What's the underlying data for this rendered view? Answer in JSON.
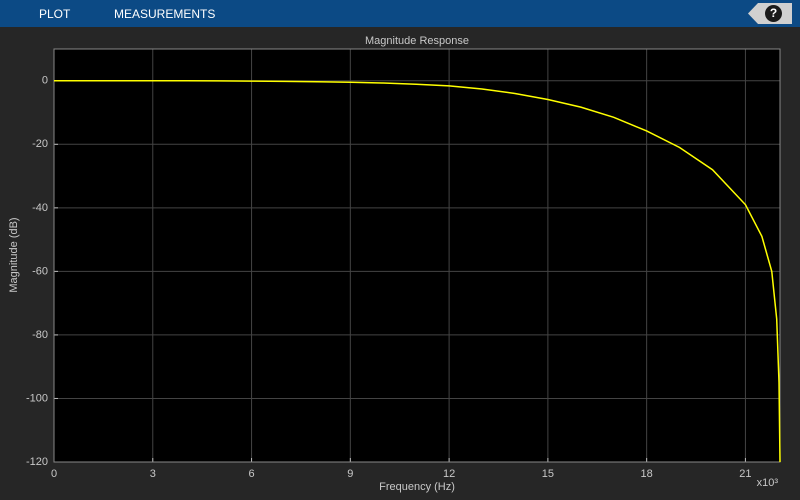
{
  "toolbar": {
    "tabs": [
      "PLOT",
      "MEASUREMENTS"
    ],
    "help": "?"
  },
  "chart_data": {
    "type": "line",
    "title": "Magnitude Response",
    "x_label": "Frequency (Hz)",
    "y_label": "Magnitude (dB)",
    "x_multiplier": "x10³",
    "series": [
      {
        "name": "Magnitude",
        "color": "#ffff00",
        "x": [
          0,
          1,
          2,
          3,
          4,
          5,
          6,
          7,
          8,
          9,
          10,
          11,
          12,
          13,
          14,
          15,
          16,
          17,
          18,
          19,
          20,
          21,
          21.5,
          21.8,
          21.95,
          22.02,
          22.05
        ],
        "values": [
          0,
          0,
          0,
          0,
          0,
          -0.05,
          -0.1,
          -0.2,
          -0.3,
          -0.45,
          -0.7,
          -1.1,
          -1.6,
          -2.6,
          -4,
          -5.9,
          -8.3,
          -11.5,
          -15.8,
          -21,
          -28,
          -39,
          -49,
          -60,
          -75,
          -95,
          -120
        ]
      }
    ],
    "xlim": [
      0,
      22.05
    ],
    "ylim": [
      -120,
      10
    ],
    "xticks": [
      0,
      3,
      6,
      9,
      12,
      15,
      18,
      21
    ],
    "yticks": [
      -120,
      -100,
      -80,
      -60,
      -40,
      -20,
      0
    ],
    "grid": true
  }
}
